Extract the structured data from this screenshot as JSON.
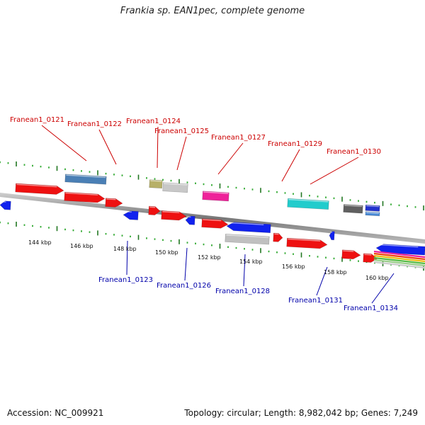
{
  "title": "Frankia sp. EAN1pec, complete genome",
  "footer": {
    "accession": "Accession: NC_009921",
    "summary": "Topology: circular; Length: 8,982,042 bp; Genes: 7,249"
  },
  "colors": {
    "forward_label": "#cc0000",
    "reverse_label": "#0000aa",
    "tick_major": "#227722",
    "tick_minor": "#33aa33",
    "backbone": "#888888"
  },
  "scale_labels": [
    "144 kbp",
    "146 kbp",
    "148 kbp",
    "150 kbp",
    "152 kbp",
    "154 kbp",
    "156 kbp",
    "158 kbp",
    "160 kbp"
  ],
  "forward_labels": [
    "Franean1_0121",
    "Franean1_0122",
    "Franean1_0124",
    "Franean1_0125",
    "Franean1_0127",
    "Franean1_0129",
    "Franean1_0130"
  ],
  "reverse_labels": [
    "Franean1_0123",
    "Franean1_0126",
    "Franean1_0128",
    "Franean1_0131",
    "Franean1_0134"
  ]
}
